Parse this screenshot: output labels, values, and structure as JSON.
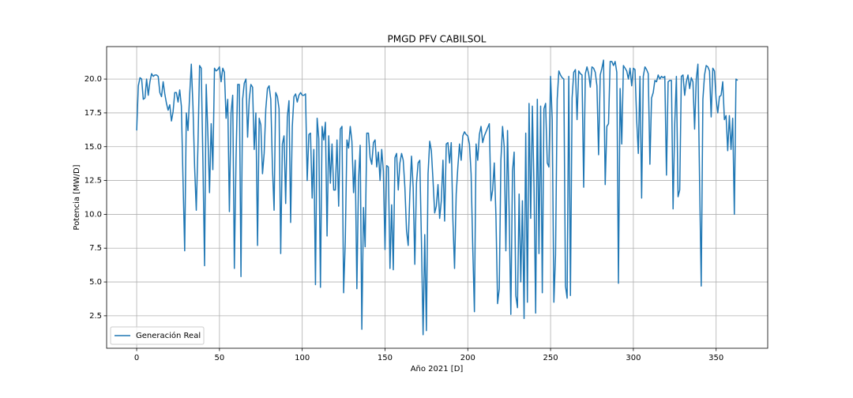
{
  "chart_data": {
    "type": "line",
    "title": "PMGD PFV CABILSOL",
    "x_label": "Año 2021 [D]",
    "y_label": "Potencia [MW/D]",
    "x": [
      0,
      1,
      2,
      3,
      4,
      5,
      6,
      7,
      8,
      9,
      10,
      11,
      12,
      13,
      14,
      15,
      16,
      17,
      18,
      19,
      20,
      21,
      22,
      23,
      24,
      25,
      26,
      27,
      28,
      29,
      30,
      31,
      32,
      33,
      34,
      35,
      36,
      37,
      38,
      39,
      40,
      41,
      42,
      43,
      44,
      45,
      46,
      47,
      48,
      49,
      50,
      51,
      52,
      53,
      54,
      55,
      56,
      57,
      58,
      59,
      60,
      61,
      62,
      63,
      64,
      65,
      66,
      67,
      68,
      69,
      70,
      71,
      72,
      73,
      74,
      75,
      76,
      77,
      78,
      79,
      80,
      81,
      82,
      83,
      84,
      85,
      86,
      87,
      88,
      89,
      90,
      91,
      92,
      93,
      94,
      95,
      96,
      97,
      98,
      99,
      100,
      101,
      102,
      103,
      104,
      105,
      106,
      107,
      108,
      109,
      110,
      111,
      112,
      113,
      114,
      115,
      116,
      117,
      118,
      119,
      120,
      121,
      122,
      123,
      124,
      125,
      126,
      127,
      128,
      129,
      130,
      131,
      132,
      133,
      134,
      135,
      136,
      137,
      138,
      139,
      140,
      141,
      142,
      143,
      144,
      145,
      146,
      147,
      148,
      149,
      150,
      151,
      152,
      153,
      154,
      155,
      156,
      157,
      158,
      159,
      160,
      161,
      162,
      163,
      164,
      165,
      166,
      167,
      168,
      169,
      170,
      171,
      172,
      173,
      174,
      175,
      176,
      177,
      178,
      179,
      180,
      181,
      182,
      183,
      184,
      185,
      186,
      187,
      188,
      189,
      190,
      191,
      192,
      193,
      194,
      195,
      196,
      197,
      198,
      199,
      200,
      201,
      202,
      203,
      204,
      205,
      206,
      207,
      208,
      209,
      210,
      211,
      212,
      213,
      214,
      215,
      216,
      217,
      218,
      219,
      220,
      221,
      222,
      223,
      224,
      225,
      226,
      227,
      228,
      229,
      230,
      231,
      232,
      233,
      234,
      235,
      236,
      237,
      238,
      239,
      240,
      241,
      242,
      243,
      244,
      245,
      246,
      247,
      248,
      249,
      250,
      251,
      252,
      253,
      254,
      255,
      256,
      257,
      258,
      259,
      260,
      261,
      262,
      263,
      264,
      265,
      266,
      267,
      268,
      269,
      270,
      271,
      272,
      273,
      274,
      275,
      276,
      277,
      278,
      279,
      280,
      281,
      282,
      283,
      284,
      285,
      286,
      287,
      288,
      289,
      290,
      291,
      292,
      293,
      294,
      295,
      296,
      297,
      298,
      299,
      300,
      301,
      302,
      303,
      304,
      305,
      306,
      307,
      308,
      309,
      310,
      311,
      312,
      313,
      314,
      315,
      316,
      317,
      318,
      319,
      320,
      321,
      322,
      323,
      324,
      325,
      326,
      327,
      328,
      329,
      330,
      331,
      332,
      333,
      334,
      335,
      336,
      337,
      338,
      339,
      340,
      341,
      342,
      343,
      344,
      345,
      346,
      347,
      348,
      349,
      350,
      351,
      352,
      353,
      354,
      355,
      356,
      357,
      358,
      359,
      360,
      361,
      362,
      363
    ],
    "series": [
      {
        "name": "Generación Real",
        "color": "#1f77b4",
        "values": [
          16.2,
          19.5,
          20.1,
          20.0,
          18.5,
          18.6,
          20.0,
          18.8,
          19.8,
          20.4,
          20.2,
          20.3,
          20.3,
          20.2,
          19.0,
          18.7,
          19.8,
          18.9,
          18.2,
          17.7,
          18.1,
          16.9,
          17.6,
          19.0,
          19.0,
          18.3,
          19.2,
          18.0,
          12.5,
          7.3,
          17.5,
          16.2,
          18.8,
          21.1,
          18.0,
          13.5,
          10.3,
          15.0,
          21.0,
          20.8,
          14.0,
          6.2,
          19.6,
          16.0,
          11.6,
          16.7,
          13.3,
          20.8,
          20.6,
          20.7,
          20.9,
          19.8,
          20.8,
          20.5,
          17.1,
          18.5,
          10.2,
          17.5,
          18.8,
          6.0,
          14.0,
          19.6,
          19.6,
          5.4,
          18.5,
          19.7,
          20.0,
          15.7,
          18.5,
          19.6,
          19.4,
          14.8,
          17.5,
          7.7,
          17.1,
          16.6,
          13.0,
          14.5,
          17.8,
          19.3,
          19.5,
          18.5,
          13.5,
          10.3,
          19.0,
          18.7,
          17.8,
          7.1,
          15.2,
          15.8,
          10.8,
          17.2,
          18.4,
          9.4,
          16.5,
          18.7,
          18.9,
          18.3,
          18.8,
          19.0,
          18.8,
          18.8,
          18.9,
          12.5,
          15.9,
          16.0,
          11.2,
          14.8,
          4.8,
          17.1,
          15.6,
          4.6,
          16.5,
          15.5,
          16.8,
          8.4,
          15.8,
          12.3,
          15.2,
          11.8,
          11.8,
          15.5,
          10.6,
          16.3,
          16.5,
          4.2,
          8.0,
          15.5,
          14.9,
          16.5,
          15.4,
          11.6,
          14.0,
          4.5,
          12.5,
          15.1,
          1.5,
          10.5,
          7.6,
          16.0,
          16.0,
          14.2,
          13.7,
          15.3,
          15.5,
          13.5,
          14.6,
          12.5,
          14.8,
          13.2,
          7.4,
          13.6,
          13.5,
          6.0,
          10.7,
          5.9,
          14.2,
          14.5,
          11.8,
          13.8,
          14.5,
          14.0,
          12.0,
          8.8,
          7.7,
          11.5,
          14.3,
          12.0,
          6.3,
          12.3,
          13.8,
          14.0,
          8.0,
          1.1,
          8.5,
          1.4,
          13.0,
          15.4,
          14.7,
          12.5,
          10.1,
          10.6,
          12.2,
          9.7,
          11.0,
          14.0,
          9.5,
          15.2,
          15.3,
          13.8,
          15.3,
          9.6,
          6.0,
          11.5,
          13.5,
          15.2,
          14.0,
          15.8,
          16.1,
          15.9,
          15.8,
          15.2,
          13.0,
          7.5,
          2.8,
          15.2,
          14.0,
          15.9,
          16.5,
          15.3,
          15.8,
          16.1,
          16.4,
          16.7,
          11.0,
          11.8,
          13.8,
          9.9,
          3.4,
          4.5,
          14.0,
          16.5,
          15.0,
          7.3,
          16.2,
          10.0,
          2.6,
          13.2,
          14.6,
          4.0,
          3.1,
          11.5,
          5.0,
          11.0,
          2.3,
          16.0,
          3.5,
          18.2,
          9.7,
          18.0,
          12.0,
          2.7,
          18.5,
          7.1,
          18.0,
          4.2,
          17.8,
          18.2,
          13.8,
          13.5,
          20.2,
          17.0,
          3.5,
          7.0,
          18.5,
          20.6,
          20.3,
          20.1,
          20.0,
          4.7,
          3.8,
          20.2,
          4.0,
          18.6,
          20.5,
          20.7,
          17.0,
          20.6,
          20.4,
          20.3,
          12.0,
          20.4,
          20.9,
          20.4,
          19.4,
          20.9,
          20.8,
          20.5,
          19.5,
          14.4,
          20.3,
          20.8,
          21.4,
          12.2,
          16.5,
          16.7,
          21.3,
          21.3,
          21.0,
          21.3,
          20.5,
          4.9,
          19.3,
          15.2,
          21.0,
          20.8,
          20.6,
          20.0,
          20.8,
          19.5,
          20.8,
          20.7,
          17.0,
          14.5,
          20.2,
          11.2,
          20.2,
          20.9,
          20.7,
          20.4,
          13.7,
          18.6,
          19.0,
          19.9,
          19.8,
          20.3,
          20.0,
          20.2,
          20.1,
          20.2,
          12.9,
          19.8,
          19.9,
          19.9,
          10.4,
          16.7,
          20.2,
          11.3,
          11.8,
          20.2,
          20.3,
          18.8,
          19.8,
          20.3,
          19.3,
          20.1,
          19.8,
          16.3,
          20.0,
          21.1,
          12.5,
          4.7,
          18.5,
          20.3,
          21.0,
          20.9,
          20.6,
          17.2,
          20.8,
          20.6,
          18.5,
          17.5,
          18.7,
          18.8,
          19.8,
          17.0,
          17.3,
          14.7,
          17.3,
          14.8,
          17.1,
          10.0,
          20.0,
          19.9
        ]
      }
    ],
    "xlim": [
      -18.15,
      381.15
    ],
    "ylim": [
      0.1,
      22.4
    ],
    "xticks": [
      0,
      50,
      100,
      150,
      200,
      250,
      300,
      350
    ],
    "yticks": [
      2.5,
      {
        "value": 5,
        "label": "5.0"
      },
      7.5,
      {
        "value": 10,
        "label": "10.0"
      },
      12.5,
      {
        "value": 15,
        "label": "15.0"
      },
      17.5,
      {
        "value": 20,
        "label": "20.0"
      }
    ],
    "grid": true,
    "legend": "lower-left"
  }
}
